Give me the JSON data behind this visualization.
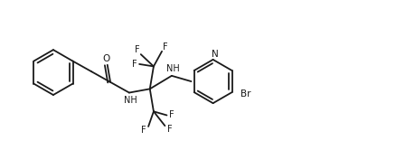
{
  "bg_color": "#ffffff",
  "line_color": "#1a1a1a",
  "line_width": 1.3,
  "font_size": 7.0,
  "fig_width": 4.38,
  "fig_height": 1.56,
  "xlim": [
    0.0,
    10.5
  ],
  "ylim": [
    0.5,
    4.2
  ]
}
